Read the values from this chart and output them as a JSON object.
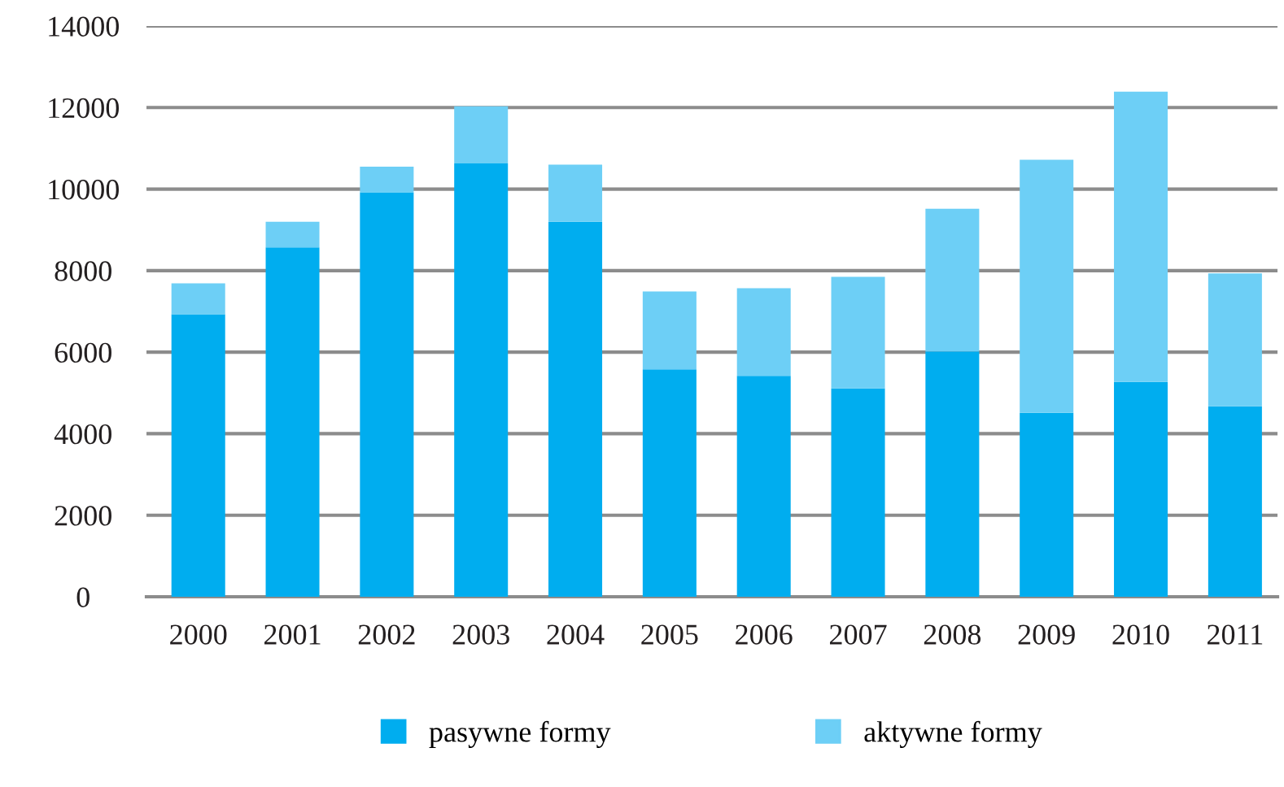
{
  "chart_data": {
    "type": "bar",
    "stacked": true,
    "categories": [
      "2000",
      "2001",
      "2002",
      "2003",
      "2004",
      "2005",
      "2006",
      "2007",
      "2008",
      "2009",
      "2010",
      "2011"
    ],
    "series": [
      {
        "name": "pasywne formy",
        "color": "#00adef",
        "values": [
          6930,
          8570,
          9920,
          10630,
          9200,
          5580,
          5420,
          5110,
          6020,
          4510,
          5270,
          4670
        ]
      },
      {
        "name": "aktywne formy",
        "color": "#6dcff6",
        "values": [
          760,
          630,
          630,
          1400,
          1400,
          1910,
          2150,
          2740,
          3500,
          6210,
          7120,
          3260
        ]
      }
    ],
    "ylim": [
      0,
      14000
    ],
    "yticks": [
      0,
      2000,
      4000,
      6000,
      8000,
      10000,
      12000,
      14000
    ],
    "grid": "y",
    "legend": "bottom"
  }
}
